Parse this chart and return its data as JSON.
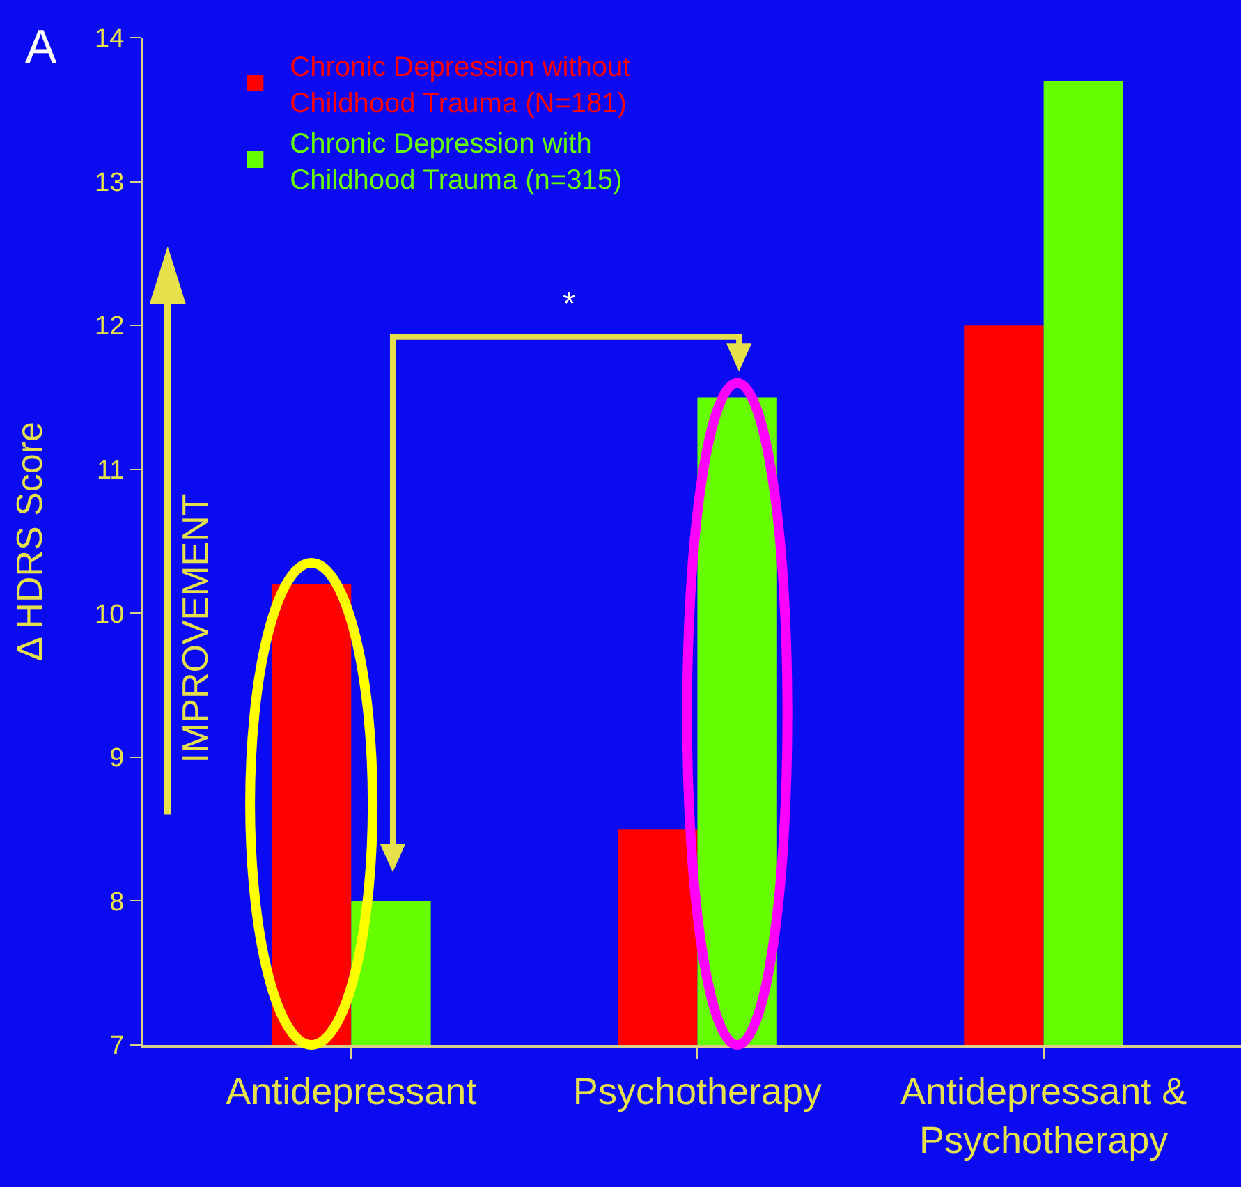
{
  "chart_data": {
    "type": "bar",
    "ylabel": "Δ HDRS Score",
    "categories": [
      "Antidepressant",
      "Psychotherapy",
      "Antidepressant & Psychotherapy"
    ],
    "series": [
      {
        "name": "Chronic Depression without Childhood Trauma (N=181)",
        "color": "#ff0000",
        "values": [
          10.2,
          8.5,
          12.0
        ]
      },
      {
        "name": "Chronic Depression with Childhood Trauma (n=315)",
        "color": "#66ff00",
        "values": [
          8.0,
          11.5,
          13.7
        ]
      }
    ],
    "ylim": [
      7,
      14
    ],
    "yticks": [
      7,
      8,
      9,
      10,
      11,
      12,
      13,
      14
    ],
    "grid": false,
    "legend": "top left",
    "annotations": [
      "A",
      "IMPROVEMENT",
      "*"
    ]
  }
}
